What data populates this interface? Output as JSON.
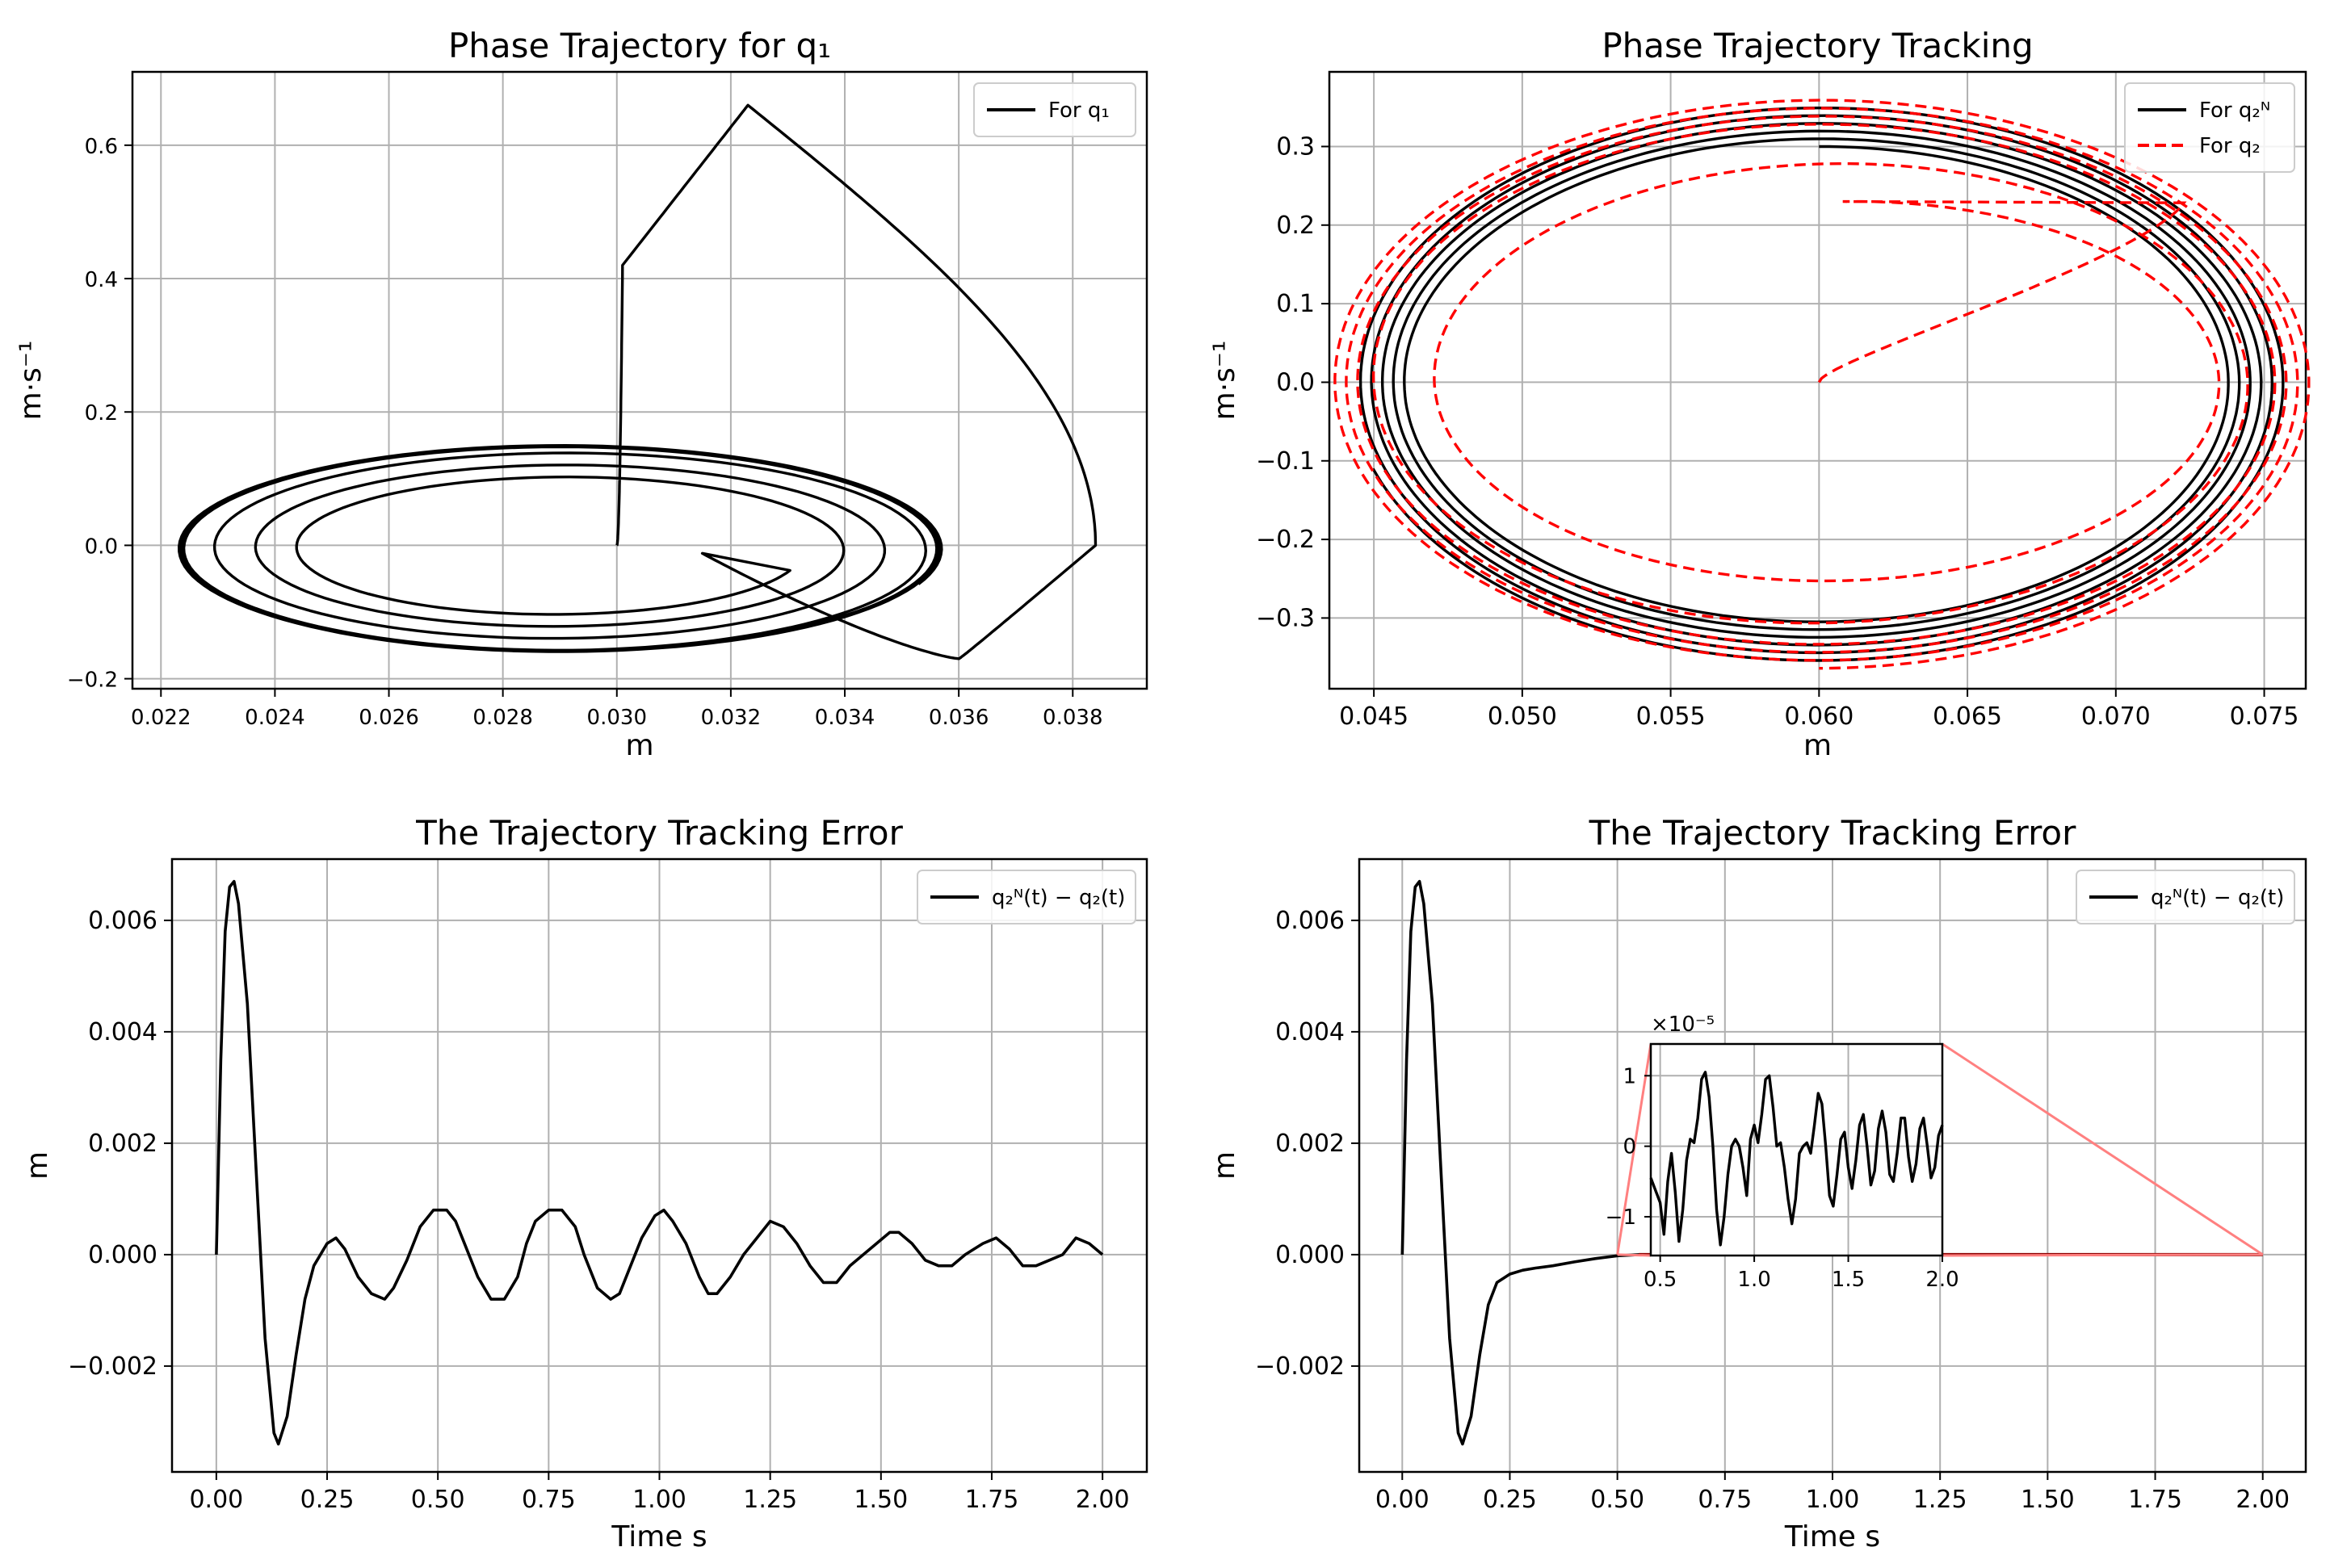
{
  "figure": {
    "background": "#ffffff"
  },
  "chart_data": [
    {
      "type": "line",
      "title": "Phase Trajectory for q₁",
      "xlabel": "m",
      "ylabel": "m·s⁻¹",
      "xlim": [
        0.0215,
        0.0393
      ],
      "ylim": [
        -0.215,
        0.71
      ],
      "xticks": [
        0.022,
        0.024,
        0.026,
        0.028,
        0.03,
        0.032,
        0.034,
        0.036,
        0.038
      ],
      "xtick_labels": [
        "0.022",
        "0.024",
        "0.026",
        "0.028",
        "0.030",
        "0.032",
        "0.034",
        "0.036",
        "0.038"
      ],
      "yticks": [
        -0.2,
        0.0,
        0.2,
        0.4,
        0.6
      ],
      "ytick_labels": [
        "−0.2",
        "0.0",
        "0.2",
        "0.4",
        "0.6"
      ],
      "grid": true,
      "legend": {
        "placement": "upper right",
        "entries": [
          {
            "label": "For q₁",
            "color": "#000000",
            "style": "solid"
          }
        ]
      },
      "series": [
        {
          "name": "For q₁",
          "color": "#000000",
          "style": "solid",
          "description": "spiral phase portrait, transient loop to (0.0323, 0.66) then settling onto ellipse centered near (0.029, 0.0) with x-amplitude ~0.0065 and y-amplitude ~0.15"
        }
      ]
    },
    {
      "type": "line",
      "title": "Phase Trajectory Tracking",
      "xlabel": "m",
      "ylabel": "m·s⁻¹",
      "xlim": [
        0.0435,
        0.0764
      ],
      "ylim": [
        -0.39,
        0.395
      ],
      "xticks": [
        0.045,
        0.05,
        0.055,
        0.06,
        0.065,
        0.07,
        0.075
      ],
      "xtick_labels": [
        "0.045",
        "0.050",
        "0.055",
        "0.060",
        "0.065",
        "0.070",
        "0.075"
      ],
      "yticks": [
        -0.3,
        -0.2,
        -0.1,
        0.0,
        0.1,
        0.2,
        0.3
      ],
      "ytick_labels": [
        "−0.3",
        "−0.2",
        "−0.1",
        "0.0",
        "0.1",
        "0.2",
        "0.3"
      ],
      "grid": true,
      "legend": {
        "placement": "upper right",
        "entries": [
          {
            "label": "For q₂ᴺ",
            "color": "#000000",
            "style": "solid"
          },
          {
            "label": "For q₂",
            "color": "#ff0000",
            "style": "dashed"
          }
        ]
      },
      "series": [
        {
          "name": "For q₂ᴺ",
          "color": "#000000",
          "style": "solid",
          "description": "growing ellipses centered at (0.060, 0.0), x-amplitude 0.0137 to 0.0158, y-amplitude 0.30 to 0.355"
        },
        {
          "name": "For q₂",
          "color": "#ff0000",
          "style": "dashed",
          "description": "starts at (0.060, 0.0), spirals outward and converges onto the black ellipses"
        }
      ]
    },
    {
      "type": "line",
      "title": "The Trajectory Tracking Error",
      "xlabel": "Time s",
      "ylabel": "m",
      "xlim": [
        -0.1,
        2.1
      ],
      "ylim": [
        -0.0039,
        0.0071
      ],
      "xticks": [
        0,
        0.25,
        0.5,
        0.75,
        1.0,
        1.25,
        1.5,
        1.75,
        2.0
      ],
      "xtick_labels": [
        "0.00",
        "0.25",
        "0.50",
        "0.75",
        "1.00",
        "1.25",
        "1.50",
        "1.75",
        "2.00"
      ],
      "yticks": [
        -0.002,
        0.0,
        0.002,
        0.004,
        0.006
      ],
      "ytick_labels": [
        "−0.002",
        "0.000",
        "0.002",
        "0.004",
        "0.006"
      ],
      "grid": true,
      "legend": {
        "placement": "upper right",
        "entries": [
          {
            "label": "q₂ᴺ(t) − q₂(t)",
            "color": "#000000",
            "style": "solid"
          }
        ]
      },
      "series": [
        {
          "name": "q₂ᴺ(t) − q₂(t)",
          "color": "#000000",
          "style": "solid",
          "x": [
            0,
            0.01,
            0.02,
            0.03,
            0.04,
            0.05,
            0.07,
            0.09,
            0.11,
            0.13,
            0.14,
            0.16,
            0.18,
            0.2,
            0.22,
            0.25,
            0.27,
            0.29,
            0.32,
            0.35,
            0.38,
            0.4,
            0.43,
            0.46,
            0.49,
            0.52,
            0.54,
            0.56,
            0.59,
            0.62,
            0.65,
            0.68,
            0.7,
            0.72,
            0.75,
            0.78,
            0.81,
            0.83,
            0.86,
            0.89,
            0.91,
            0.93,
            0.96,
            0.99,
            1.01,
            1.03,
            1.06,
            1.09,
            1.11,
            1.13,
            1.16,
            1.19,
            1.22,
            1.25,
            1.28,
            1.31,
            1.34,
            1.37,
            1.4,
            1.43,
            1.46,
            1.49,
            1.52,
            1.54,
            1.57,
            1.6,
            1.63,
            1.66,
            1.69,
            1.71,
            1.73,
            1.76,
            1.79,
            1.82,
            1.85,
            1.88,
            1.91,
            1.94,
            1.97,
            2.0
          ],
          "y": [
            0,
            0.0035,
            0.0058,
            0.0066,
            0.0067,
            0.0063,
            0.0045,
            0.0015,
            -0.0015,
            -0.0032,
            -0.0034,
            -0.0029,
            -0.0018,
            -0.0008,
            -0.0002,
            0.0002,
            0.0003,
            0.0001,
            -0.0004,
            -0.0007,
            -0.0008,
            -0.0006,
            -0.0001,
            0.0005,
            0.0008,
            0.0008,
            0.0006,
            0.0002,
            -0.0004,
            -0.0008,
            -0.0008,
            -0.0004,
            0.0002,
            0.0006,
            0.0008,
            0.0008,
            0.0005,
            0.0,
            -0.0006,
            -0.0008,
            -0.0007,
            -0.0003,
            0.0003,
            0.0007,
            0.0008,
            0.0006,
            0.0002,
            -0.0004,
            -0.0007,
            -0.0007,
            -0.0004,
            0.0,
            0.0003,
            0.0006,
            0.0005,
            0.0002,
            -0.0002,
            -0.0005,
            -0.0005,
            -0.0002,
            0.0,
            0.0002,
            0.0004,
            0.0004,
            0.0002,
            -0.0001,
            -0.0002,
            -0.0002,
            0.0,
            0.0001,
            0.0002,
            0.0003,
            0.0001,
            -0.0002,
            -0.0002,
            -0.0001,
            0.0,
            0.0003,
            0.0002,
            0.0
          ]
        }
      ]
    },
    {
      "type": "line",
      "title": "The Trajectory Tracking Error",
      "xlabel": "Time s",
      "ylabel": "m",
      "xlim": [
        -0.1,
        2.1
      ],
      "ylim": [
        -0.0039,
        0.0071
      ],
      "xticks": [
        0,
        0.25,
        0.5,
        0.75,
        1.0,
        1.25,
        1.5,
        1.75,
        2.0
      ],
      "xtick_labels": [
        "0.00",
        "0.25",
        "0.50",
        "0.75",
        "1.00",
        "1.25",
        "1.50",
        "1.75",
        "2.00"
      ],
      "yticks": [
        -0.002,
        0.0,
        0.002,
        0.004,
        0.006
      ],
      "ytick_labels": [
        "−0.002",
        "0.000",
        "0.002",
        "0.004",
        "0.006"
      ],
      "grid": true,
      "legend": {
        "placement": "upper right",
        "entries": [
          {
            "label": "q₂ᴺ(t) − q₂(t)",
            "color": "#000000",
            "style": "solid"
          }
        ]
      },
      "series": [
        {
          "name": "q₂ᴺ(t) − q₂(t)",
          "color": "#000000",
          "style": "solid",
          "x": [
            0,
            0.01,
            0.02,
            0.03,
            0.04,
            0.05,
            0.07,
            0.09,
            0.11,
            0.13,
            0.14,
            0.16,
            0.18,
            0.2,
            0.22,
            0.25,
            0.28,
            0.31,
            0.35,
            0.4,
            0.45,
            0.5,
            0.55,
            0.6,
            0.8,
            1.0,
            1.25,
            1.5,
            1.75,
            2.0
          ],
          "y": [
            0,
            0.0035,
            0.0058,
            0.0066,
            0.0067,
            0.0063,
            0.0045,
            0.0015,
            -0.0015,
            -0.0032,
            -0.0034,
            -0.0029,
            -0.0018,
            -0.0009,
            -0.0005,
            -0.00035,
            -0.00028,
            -0.00024,
            -0.0002,
            -0.00013,
            -7e-05,
            -2e-05,
            0.0,
            0.0,
            0.0,
            0.0,
            0.0,
            0.0,
            0.0,
            0.0
          ]
        }
      ],
      "inset": {
        "xlim": [
          0.45,
          2.0
        ],
        "ylim": [
          -1.55,
          1.45
        ],
        "y_multiplier_label": "×10⁻⁵",
        "xticks": [
          0.5,
          1.0,
          1.5,
          2.0
        ],
        "xtick_labels": [
          "0.5",
          "1.0",
          "1.5",
          "2.0"
        ],
        "yticks": [
          -1,
          0,
          1
        ],
        "ytick_labels": [
          "−1",
          "0",
          "1"
        ],
        "grid": true,
        "zoom_region": {
          "x": [
            0.5,
            2.0
          ],
          "y": [
            -2e-05,
            2e-05
          ]
        },
        "series": [
          {
            "name": "q₂ᴺ(t) − q₂(t)",
            "color": "#000000",
            "style": "solid",
            "x": [
              0.45,
              0.5,
              0.52,
              0.54,
              0.56,
              0.58,
              0.6,
              0.62,
              0.64,
              0.66,
              0.68,
              0.7,
              0.72,
              0.74,
              0.76,
              0.78,
              0.8,
              0.82,
              0.84,
              0.86,
              0.88,
              0.9,
              0.92,
              0.94,
              0.96,
              0.98,
              1.0,
              1.02,
              1.04,
              1.06,
              1.08,
              1.1,
              1.12,
              1.14,
              1.16,
              1.18,
              1.2,
              1.22,
              1.24,
              1.26,
              1.28,
              1.3,
              1.32,
              1.34,
              1.36,
              1.38,
              1.4,
              1.42,
              1.44,
              1.46,
              1.48,
              1.5,
              1.52,
              1.54,
              1.56,
              1.58,
              1.6,
              1.62,
              1.64,
              1.66,
              1.68,
              1.7,
              1.72,
              1.74,
              1.76,
              1.78,
              1.8,
              1.82,
              1.84,
              1.86,
              1.88,
              1.9,
              1.92,
              1.94,
              1.96,
              1.98,
              2.0
            ],
            "y": [
              -0.45,
              -0.8,
              -1.25,
              -0.5,
              -0.1,
              -0.65,
              -1.35,
              -0.9,
              -0.2,
              0.1,
              0.05,
              0.4,
              0.95,
              1.05,
              0.7,
              0.0,
              -0.9,
              -1.4,
              -1.0,
              -0.4,
              0.0,
              0.1,
              0.0,
              -0.3,
              -0.7,
              0.1,
              0.3,
              0.05,
              0.45,
              0.95,
              1.0,
              0.55,
              0.0,
              0.05,
              -0.3,
              -0.75,
              -1.1,
              -0.75,
              -0.1,
              0.0,
              0.05,
              -0.1,
              0.3,
              0.75,
              0.6,
              0.0,
              -0.7,
              -0.85,
              -0.4,
              0.1,
              0.2,
              -0.3,
              -0.6,
              -0.2,
              0.3,
              0.45,
              0.0,
              -0.55,
              -0.35,
              0.25,
              0.5,
              0.2,
              -0.4,
              -0.5,
              -0.1,
              0.4,
              0.4,
              -0.15,
              -0.5,
              -0.25,
              0.25,
              0.4,
              0.0,
              -0.45,
              -0.3,
              0.15,
              0.3
            ]
          }
        ]
      }
    }
  ]
}
